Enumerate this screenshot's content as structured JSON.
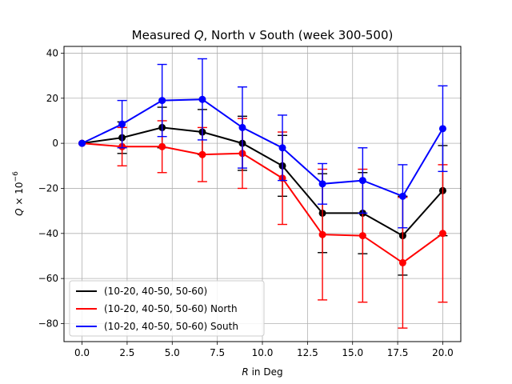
{
  "chart_data": {
    "type": "line",
    "title_parts": [
      "Measured ",
      "Q",
      ", North v South (week 300-500)"
    ],
    "xlabel_parts": [
      "R",
      " in Deg"
    ],
    "ylabel_parts": [
      "Q",
      " × 10",
      "−6"
    ],
    "xlim": [
      -1.0,
      21.0
    ],
    "ylim": [
      -88,
      43
    ],
    "xticks": [
      0.0,
      2.5,
      5.0,
      7.5,
      10.0,
      12.5,
      15.0,
      17.5,
      20.0
    ],
    "xtick_labels": [
      "0.0",
      "2.5",
      "5.0",
      "7.5",
      "10.0",
      "12.5",
      "15.0",
      "17.5",
      "20.0"
    ],
    "yticks": [
      40,
      20,
      0,
      -20,
      -40,
      -60,
      -80
    ],
    "ytick_labels": [
      "40",
      "20",
      "0",
      "−20",
      "−40",
      "−60",
      "−80"
    ],
    "grid": true,
    "legend_position": "lower-left",
    "x": [
      0.0,
      2.22,
      4.44,
      6.67,
      8.89,
      11.11,
      13.33,
      15.56,
      17.78,
      20.0
    ],
    "series": [
      {
        "name": "(10-20, 40-50, 50-60)",
        "color": "#000000",
        "values": [
          0,
          2.5,
          7,
          5,
          0,
          -10,
          -31,
          -31,
          -41,
          -21
        ],
        "err": [
          0,
          7,
          9,
          10,
          12,
          13.5,
          17.5,
          18,
          17.5,
          20
        ]
      },
      {
        "name": "(10-20, 40-50, 50-60) North",
        "color": "#ff0000",
        "values": [
          0,
          -1.5,
          -1.5,
          -5,
          -4.5,
          -15.5,
          -40.5,
          -41,
          -53,
          -40
        ],
        "err": [
          0,
          8.5,
          11.5,
          12,
          15.5,
          20.5,
          29,
          29.5,
          29,
          30.5
        ]
      },
      {
        "name": "(10-20, 40-50, 50-60) South",
        "color": "#0000ff",
        "values": [
          0,
          8.5,
          19,
          19.5,
          7,
          -2,
          -18,
          -16.5,
          -23.5,
          6.5
        ],
        "err": [
          0,
          10.5,
          16,
          18,
          18,
          14.5,
          9,
          14.5,
          14,
          19
        ]
      }
    ]
  }
}
